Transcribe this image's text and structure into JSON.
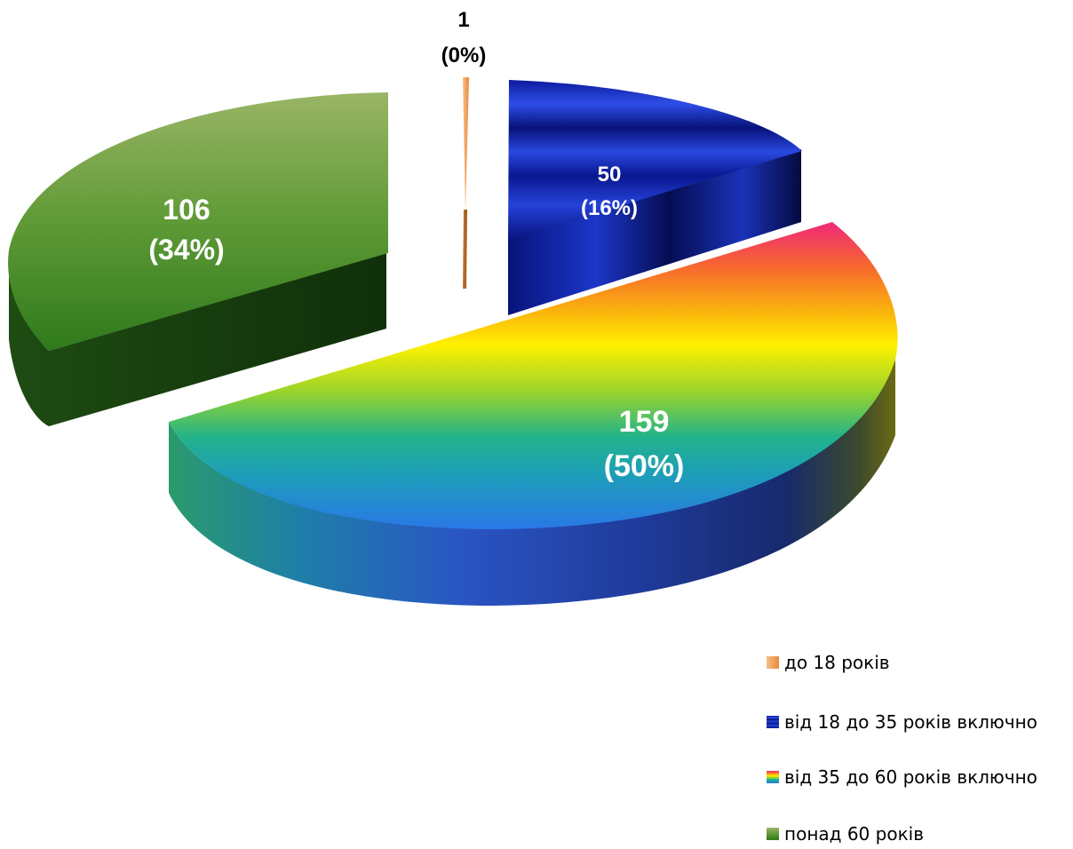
{
  "chart_data": {
    "type": "pie",
    "style": "3d-exploded",
    "title": "",
    "slices": [
      {
        "label": "до 18 років",
        "value": 1,
        "percent": "0%",
        "value_text": "1",
        "percent_text": "(0%)",
        "color": "#f4a460"
      },
      {
        "label": "від 18 до 35 років включно",
        "value": 50,
        "percent": "16%",
        "value_text": "50",
        "percent_text": "(16%)",
        "color": "#0a1fa8"
      },
      {
        "label": "від 35 до 60 років включно",
        "value": 159,
        "percent": "50%",
        "value_text": "159",
        "percent_text": "(50%)",
        "color": "#ffe600"
      },
      {
        "label": "понад 60 років",
        "value": 106,
        "percent": "34%",
        "value_text": "106",
        "percent_text": "(34%)",
        "color": "#4e8a2a"
      }
    ],
    "legend": {
      "position": "bottom-right",
      "items": [
        {
          "label": "до 18 років"
        },
        {
          "label": "від 18 до 35 років включно"
        },
        {
          "label": "від 35 до 60 років включно"
        },
        {
          "label": "понад 60 років"
        }
      ]
    }
  }
}
